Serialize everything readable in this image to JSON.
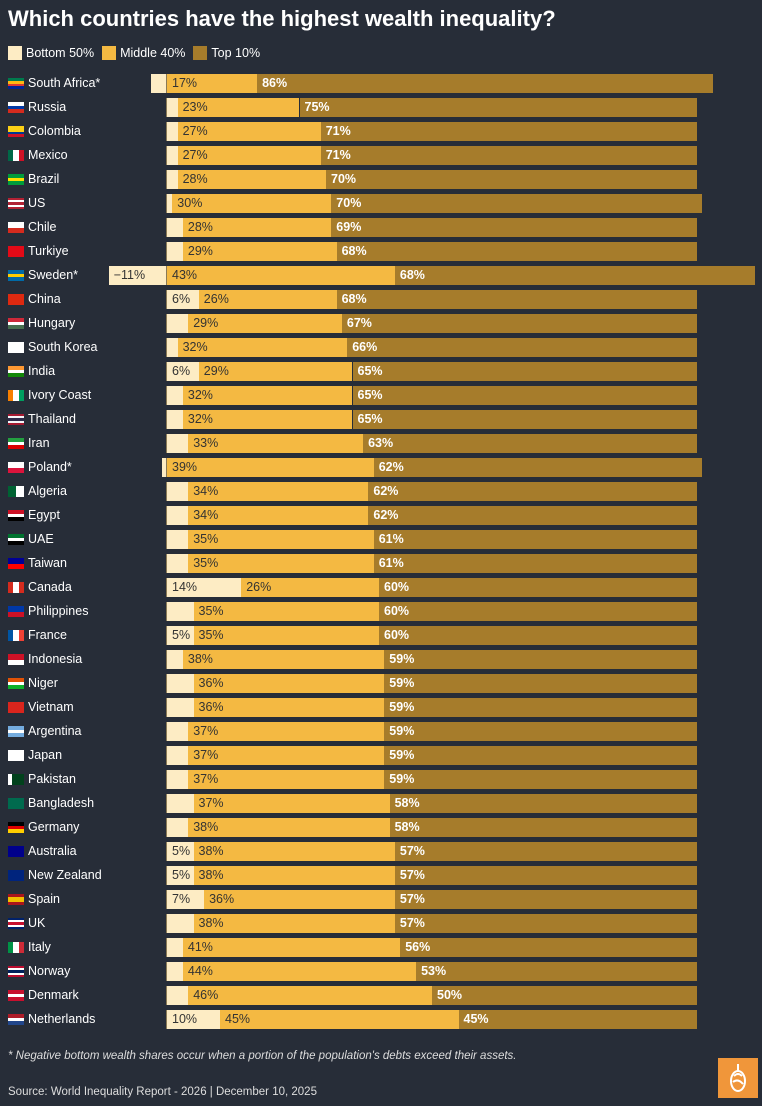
{
  "chart_data": {
    "type": "bar",
    "orientation": "horizontal-stacked",
    "title": "Which countries have the highest wealth inequality?",
    "legend": [
      {
        "name": "Bottom 50%",
        "color": "#fdecc4"
      },
      {
        "name": "Middle 40%",
        "color": "#f4b942"
      },
      {
        "name": "Top 10%",
        "color": "#a67c2b"
      }
    ],
    "legend_position": "top-left",
    "xlim": [
      -11,
      111
    ],
    "unit": "%",
    "rows": [
      {
        "country": "South Africa*",
        "flag": [
          "#007a4d",
          "#ffb612",
          "#de3831",
          "#002395"
        ],
        "bottom": -3,
        "bottom_label": null,
        "middle": 17,
        "top": 86
      },
      {
        "country": "Russia",
        "flag": [
          "#ffffff",
          "#0039a6",
          "#d52b1e"
        ],
        "bottom": 2,
        "bottom_label": null,
        "middle": 23,
        "top": 75
      },
      {
        "country": "Colombia",
        "flag": [
          "#fcd116",
          "#fcd116",
          "#003893",
          "#ce1126"
        ],
        "bottom": 2,
        "bottom_label": null,
        "middle": 27,
        "top": 71
      },
      {
        "country": "Mexico",
        "flag": [
          "#006847",
          "#ffffff",
          "#ce1126"
        ],
        "vertical": true,
        "bottom": 2,
        "bottom_label": null,
        "middle": 27,
        "top": 71
      },
      {
        "country": "Brazil",
        "flag": [
          "#009c3b",
          "#ffdf00",
          "#009c3b"
        ],
        "bottom": 2,
        "bottom_label": null,
        "middle": 28,
        "top": 70
      },
      {
        "country": "US",
        "flag": [
          "#b22234",
          "#ffffff",
          "#b22234",
          "#ffffff",
          "#b22234"
        ],
        "bottom": 1,
        "bottom_label": null,
        "middle": 30,
        "top": 70
      },
      {
        "country": "Chile",
        "flag": [
          "#ffffff",
          "#d52b1e"
        ],
        "bottom": 3,
        "bottom_label": null,
        "middle": 28,
        "top": 69
      },
      {
        "country": "Turkiye",
        "flag": [
          "#e30a17"
        ],
        "bottom": 3,
        "bottom_label": null,
        "middle": 29,
        "top": 68
      },
      {
        "country": "Sweden*",
        "flag": [
          "#006aa7",
          "#fecc00",
          "#006aa7"
        ],
        "bottom": -11,
        "bottom_label": "−11%",
        "middle": 43,
        "top": 68
      },
      {
        "country": "China",
        "flag": [
          "#de2910"
        ],
        "bottom": 6,
        "bottom_label": "6%",
        "middle": 26,
        "top": 68
      },
      {
        "country": "Hungary",
        "flag": [
          "#ce2939",
          "#ffffff",
          "#477050"
        ],
        "bottom": 4,
        "bottom_label": null,
        "middle": 29,
        "top": 67
      },
      {
        "country": "South Korea",
        "flag": [
          "#ffffff"
        ],
        "bottom": 2,
        "bottom_label": null,
        "middle": 32,
        "top": 66
      },
      {
        "country": "India",
        "flag": [
          "#ff9933",
          "#ffffff",
          "#138808"
        ],
        "bottom": 6,
        "bottom_label": "6%",
        "middle": 29,
        "top": 65
      },
      {
        "country": "Ivory Coast",
        "flag": [
          "#f77f00",
          "#ffffff",
          "#009e60"
        ],
        "vertical": true,
        "bottom": 3,
        "bottom_label": null,
        "middle": 32,
        "top": 65
      },
      {
        "country": "Thailand",
        "flag": [
          "#a51931",
          "#f4f5f8",
          "#2d2a4a",
          "#f4f5f8",
          "#a51931"
        ],
        "bottom": 3,
        "bottom_label": null,
        "middle": 32,
        "top": 65
      },
      {
        "country": "Iran",
        "flag": [
          "#239f40",
          "#ffffff",
          "#da0000"
        ],
        "bottom": 4,
        "bottom_label": null,
        "middle": 33,
        "top": 63
      },
      {
        "country": "Poland*",
        "flag": [
          "#ffffff",
          "#dc143c"
        ],
        "bottom": -1,
        "bottom_label": null,
        "middle": 39,
        "top": 62
      },
      {
        "country": "Algeria",
        "flag": [
          "#006233",
          "#ffffff"
        ],
        "vertical": true,
        "bottom": 4,
        "bottom_label": null,
        "middle": 34,
        "top": 62
      },
      {
        "country": "Egypt",
        "flag": [
          "#ce1126",
          "#ffffff",
          "#000000"
        ],
        "bottom": 4,
        "bottom_label": null,
        "middle": 34,
        "top": 62
      },
      {
        "country": "UAE",
        "flag": [
          "#00732f",
          "#ffffff",
          "#000000"
        ],
        "bottom": 4,
        "bottom_label": null,
        "middle": 35,
        "top": 61
      },
      {
        "country": "Taiwan",
        "flag": [
          "#000095",
          "#fe0000"
        ],
        "bottom": 4,
        "bottom_label": null,
        "middle": 35,
        "top": 61
      },
      {
        "country": "Canada",
        "flag": [
          "#d52b1e",
          "#ffffff",
          "#d52b1e"
        ],
        "vertical": true,
        "bottom": 14,
        "bottom_label": "14%",
        "middle": 26,
        "top": 60
      },
      {
        "country": "Philippines",
        "flag": [
          "#0038a8",
          "#ce1126"
        ],
        "bottom": 5,
        "bottom_label": null,
        "middle": 35,
        "top": 60
      },
      {
        "country": "France",
        "flag": [
          "#0055a4",
          "#ffffff",
          "#ef4135"
        ],
        "vertical": true,
        "bottom": 5,
        "bottom_label": "5%",
        "middle": 35,
        "top": 60
      },
      {
        "country": "Indonesia",
        "flag": [
          "#ce1126",
          "#ffffff"
        ],
        "bottom": 3,
        "bottom_label": null,
        "middle": 38,
        "top": 59
      },
      {
        "country": "Niger",
        "flag": [
          "#e05206",
          "#ffffff",
          "#0db02b"
        ],
        "bottom": 5,
        "bottom_label": null,
        "middle": 36,
        "top": 59
      },
      {
        "country": "Vietnam",
        "flag": [
          "#da251d"
        ],
        "bottom": 5,
        "bottom_label": null,
        "middle": 36,
        "top": 59
      },
      {
        "country": "Argentina",
        "flag": [
          "#74acdf",
          "#ffffff",
          "#74acdf"
        ],
        "bottom": 4,
        "bottom_label": null,
        "middle": 37,
        "top": 59
      },
      {
        "country": "Japan",
        "flag": [
          "#ffffff"
        ],
        "bottom": 4,
        "bottom_label": null,
        "middle": 37,
        "top": 59
      },
      {
        "country": "Pakistan",
        "flag": [
          "#ffffff",
          "#01411c",
          "#01411c",
          "#01411c"
        ],
        "vertical": true,
        "bottom": 4,
        "bottom_label": null,
        "middle": 37,
        "top": 59
      },
      {
        "country": "Bangladesh",
        "flag": [
          "#006a4e"
        ],
        "bottom": 5,
        "bottom_label": null,
        "middle": 37,
        "top": 58
      },
      {
        "country": "Germany",
        "flag": [
          "#000000",
          "#dd0000",
          "#ffce00"
        ],
        "bottom": 4,
        "bottom_label": null,
        "middle": 38,
        "top": 58
      },
      {
        "country": "Australia",
        "flag": [
          "#00008b"
        ],
        "bottom": 5,
        "bottom_label": "5%",
        "middle": 38,
        "top": 57
      },
      {
        "country": "New Zealand",
        "flag": [
          "#00247d"
        ],
        "bottom": 5,
        "bottom_label": "5%",
        "middle": 38,
        "top": 57
      },
      {
        "country": "Spain",
        "flag": [
          "#aa151b",
          "#f1bf00",
          "#f1bf00",
          "#aa151b"
        ],
        "bottom": 7,
        "bottom_label": "7%",
        "middle": 36,
        "top": 57
      },
      {
        "country": "UK",
        "flag": [
          "#012169",
          "#ffffff",
          "#c8102e",
          "#ffffff",
          "#012169"
        ],
        "bottom": 5,
        "bottom_label": null,
        "middle": 38,
        "top": 57
      },
      {
        "country": "Italy",
        "flag": [
          "#009246",
          "#ffffff",
          "#ce2b37"
        ],
        "vertical": true,
        "bottom": 3,
        "bottom_label": null,
        "middle": 41,
        "top": 56
      },
      {
        "country": "Norway",
        "flag": [
          "#ba0c2f",
          "#ffffff",
          "#00205b",
          "#ffffff",
          "#ba0c2f"
        ],
        "bottom": 3,
        "bottom_label": null,
        "middle": 44,
        "top": 53
      },
      {
        "country": "Denmark",
        "flag": [
          "#c8102e",
          "#ffffff",
          "#c8102e"
        ],
        "bottom": 4,
        "bottom_label": null,
        "middle": 46,
        "top": 50
      },
      {
        "country": "Netherlands",
        "flag": [
          "#ae1c28",
          "#ffffff",
          "#21468b"
        ],
        "bottom": 10,
        "bottom_label": "10%",
        "middle": 45,
        "top": 45
      }
    ]
  },
  "footer": {
    "note": "* Negative bottom wealth shares occur when a portion of the population's debts exceed their assets.",
    "source": "Source: World Inequality Report - 2026 | December 10, 2025",
    "logo": "Al Jazeera"
  }
}
